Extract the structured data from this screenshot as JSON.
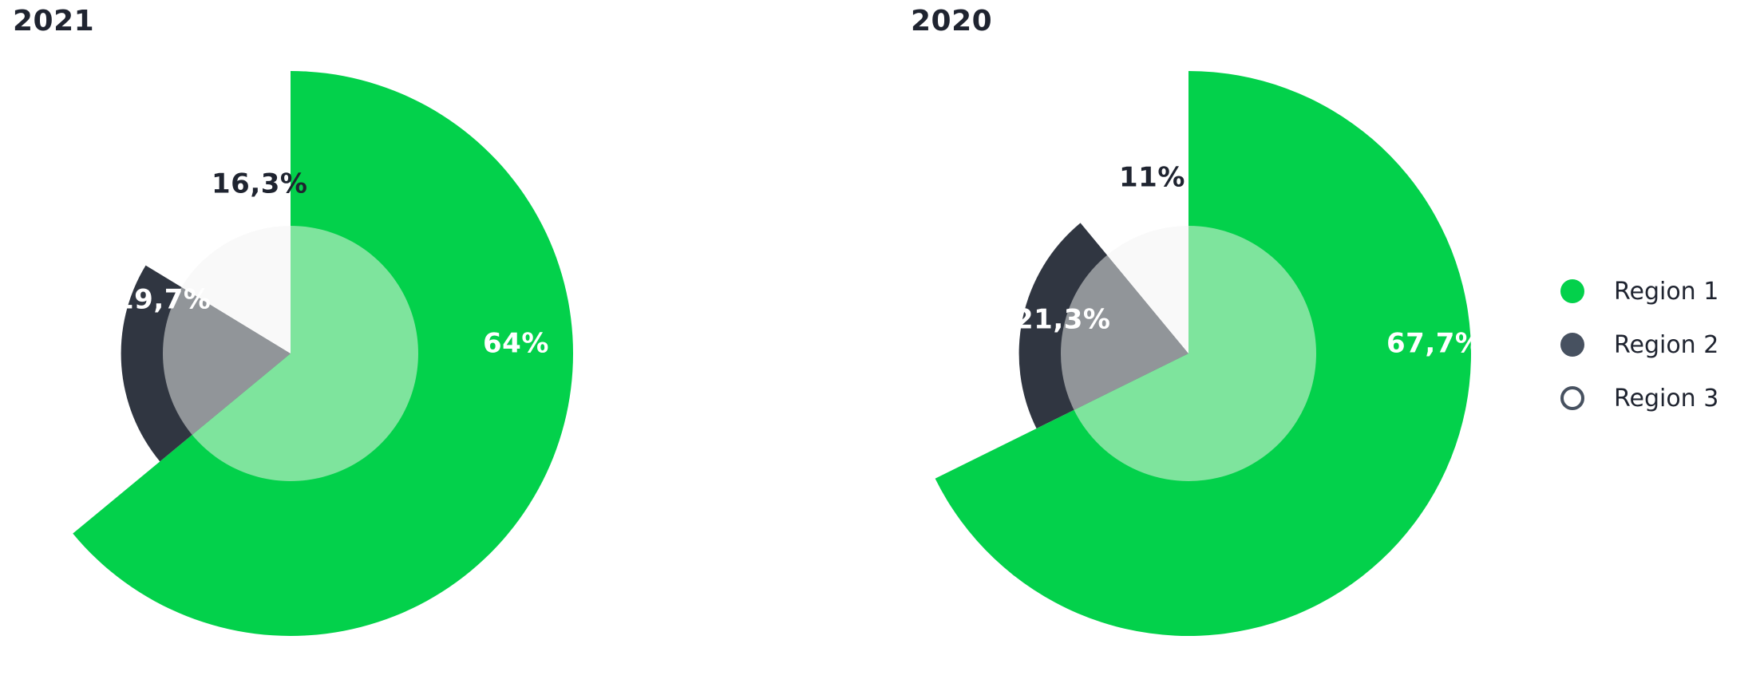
{
  "legend": [
    {
      "label": "Region 1",
      "color": "#03d14b",
      "marker": "filled"
    },
    {
      "label": "Region 2",
      "color": "#475160",
      "marker": "filled"
    },
    {
      "label": "Region 3",
      "color": "#475160",
      "marker": "outline"
    }
  ],
  "chart_data": [
    {
      "type": "pie",
      "title": "2021",
      "style": "rose / radial pie with lighter inner core",
      "categories": [
        "Region 1",
        "Region 2",
        "Region 3"
      ],
      "values": [
        64,
        19.7,
        16.3
      ],
      "labels": [
        "64%",
        "19,7%",
        "16,3%"
      ],
      "colors": [
        "#03d14b",
        "#303641",
        "#f8f8f8"
      ],
      "inner_colors": [
        "#7ee49d",
        "#919599",
        "#f9f9f9"
      ],
      "label_colors": [
        "#ffffff",
        "#ffffff",
        "#1f2430"
      ]
    },
    {
      "type": "pie",
      "title": "2020",
      "style": "rose / radial pie with lighter inner core",
      "categories": [
        "Region 1",
        "Region 2",
        "Region 3"
      ],
      "values": [
        67.7,
        21.3,
        11
      ],
      "labels": [
        "67,7%",
        "21,3%",
        "11%"
      ],
      "colors": [
        "#03d14b",
        "#303641",
        "#f8f8f8"
      ],
      "inner_colors": [
        "#7ee49d",
        "#919599",
        "#f9f9f9"
      ],
      "label_colors": [
        "#ffffff",
        "#ffffff",
        "#1f2430"
      ]
    }
  ]
}
